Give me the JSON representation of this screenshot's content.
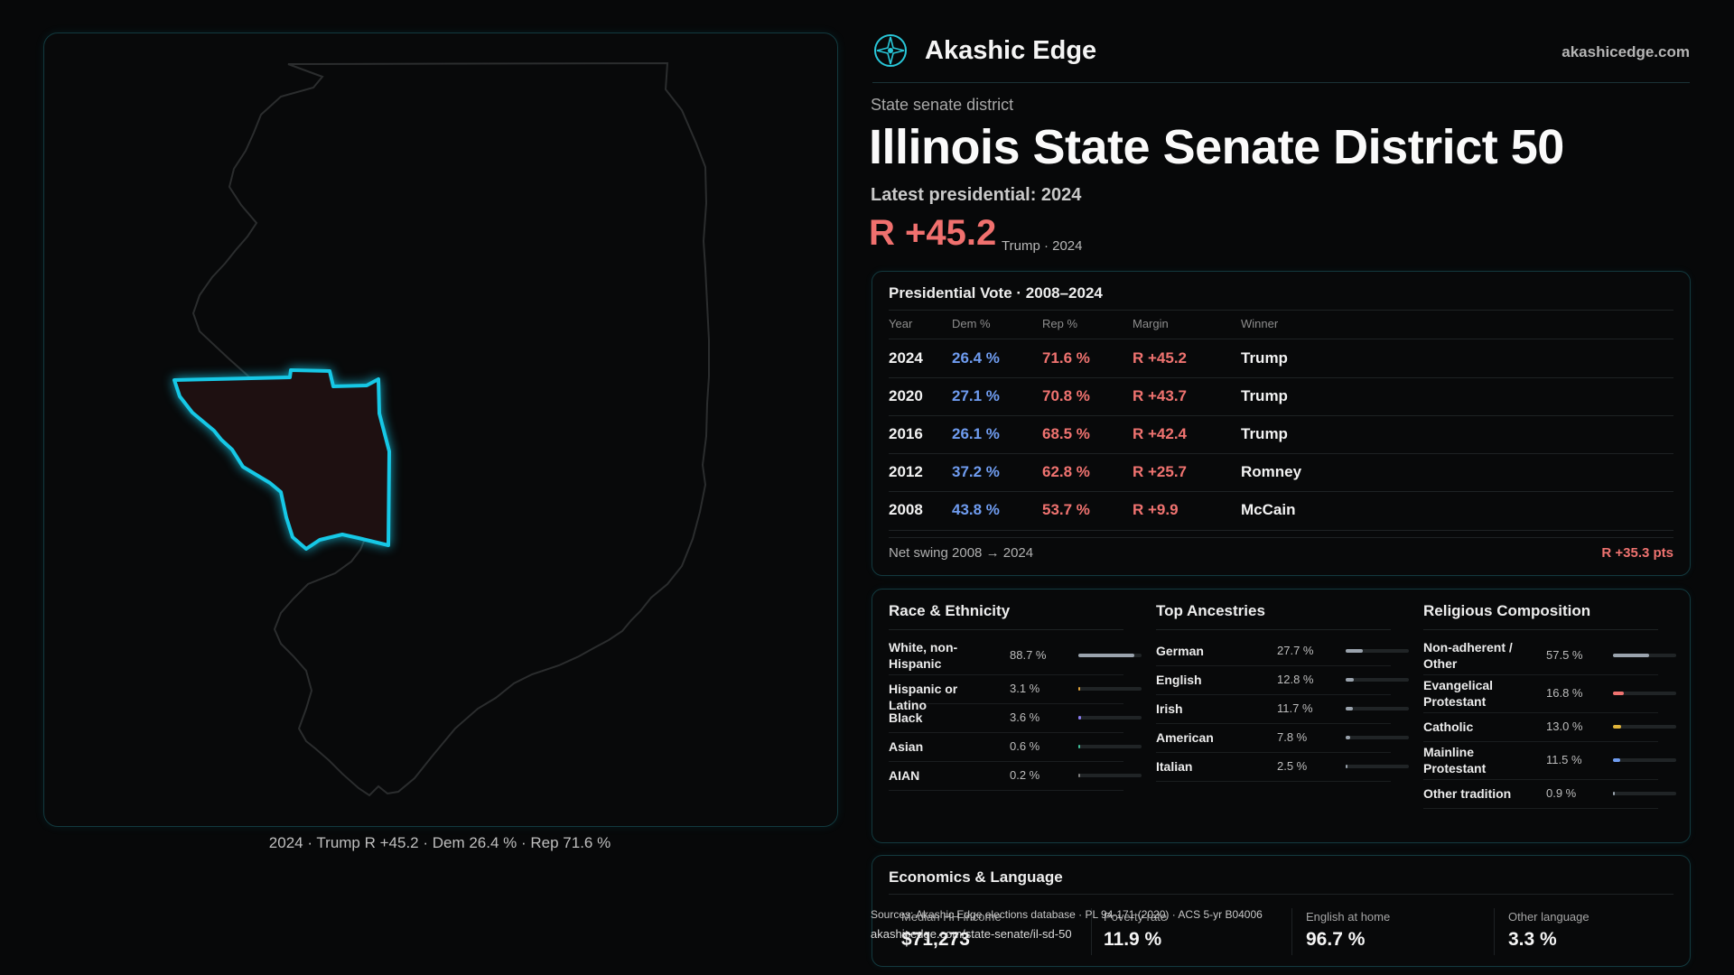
{
  "map": {
    "caption": "2024 · Trump R +45.2 · Dem 26.4 % · Rep 71.6 %"
  },
  "brand": {
    "name": "Akashic Edge",
    "url": "akashicedge.com",
    "logo_icon": "compass-rose-icon"
  },
  "header": {
    "subtitle": "State senate district",
    "title": "Illinois State Senate District 50",
    "latest_label": "Latest presidential: 2024",
    "margin": "R +45.2",
    "margin_note": "Trump · 2024"
  },
  "presidential": {
    "title": "Presidential Vote · 2008–2024",
    "columns": [
      "Year",
      "Dem %",
      "Rep %",
      "Margin",
      "Winner"
    ],
    "rows": [
      {
        "year": "2024",
        "dem": "26.4 %",
        "rep": "71.6 %",
        "margin": "R +45.2",
        "winner": "Trump"
      },
      {
        "year": "2020",
        "dem": "27.1 %",
        "rep": "70.8 %",
        "margin": "R +43.7",
        "winner": "Trump"
      },
      {
        "year": "2016",
        "dem": "26.1 %",
        "rep": "68.5 %",
        "margin": "R +42.4",
        "winner": "Trump"
      },
      {
        "year": "2012",
        "dem": "37.2 %",
        "rep": "62.8 %",
        "margin": "R +25.7",
        "winner": "Romney"
      },
      {
        "year": "2008",
        "dem": "43.8 %",
        "rep": "53.7 %",
        "margin": "R +9.9",
        "winner": "McCain"
      }
    ],
    "swing_label": "Net swing 2008 → 2024",
    "swing_value": "R +35.3 pts"
  },
  "demographics": [
    {
      "title": "Race & Ethnicity",
      "items": [
        {
          "label": "White, non-Hispanic",
          "value": "88.7 %",
          "share": 0.887,
          "color": "#9aa3ad"
        },
        {
          "label": "Hispanic or Latino",
          "value": "3.1 %",
          "share": 0.031,
          "color": "#e0a23a"
        },
        {
          "label": "Black",
          "value": "3.6 %",
          "share": 0.036,
          "color": "#8a7cf0"
        },
        {
          "label": "Asian",
          "value": "0.6 %",
          "share": 0.006,
          "color": "#3fbf9a"
        },
        {
          "label": "AIAN",
          "value": "0.2 %",
          "share": 0.002,
          "color": "#7f7f7f"
        }
      ]
    },
    {
      "title": "Top Ancestries",
      "items": [
        {
          "label": "German",
          "value": "27.7 %",
          "share": 0.277,
          "color": "#9aa3ad"
        },
        {
          "label": "English",
          "value": "12.8 %",
          "share": 0.128,
          "color": "#9aa3ad"
        },
        {
          "label": "Irish",
          "value": "11.7 %",
          "share": 0.117,
          "color": "#9aa3ad"
        },
        {
          "label": "American",
          "value": "7.8 %",
          "share": 0.078,
          "color": "#9aa3ad"
        },
        {
          "label": "Italian",
          "value": "2.5 %",
          "share": 0.025,
          "color": "#9aa3ad"
        }
      ]
    },
    {
      "title": "Religious Composition",
      "items": [
        {
          "label": "Non-adherent / Other",
          "value": "57.5 %",
          "share": 0.575,
          "color": "#9aa3ad"
        },
        {
          "label": "Evangelical Protestant",
          "value": "16.8 %",
          "share": 0.168,
          "color": "#f07370"
        },
        {
          "label": "Catholic",
          "value": "13.0 %",
          "share": 0.13,
          "color": "#e0b43a"
        },
        {
          "label": "Mainline Protestant",
          "value": "11.5 %",
          "share": 0.115,
          "color": "#6f9cf0"
        },
        {
          "label": "Other tradition",
          "value": "0.9 %",
          "share": 0.009,
          "color": "#9aa3ad"
        }
      ]
    }
  ],
  "economics": {
    "title": "Economics & Language",
    "cells": [
      {
        "label": "Median HH income",
        "value": "$71,273"
      },
      {
        "label": "Poverty rate",
        "value": "11.9 %"
      },
      {
        "label": "English at home",
        "value": "96.7 %"
      },
      {
        "label": "Other language",
        "value": "3.3 %"
      }
    ]
  },
  "footer": {
    "source": "Sources: Akashic Edge elections database · PL 94-171 (2020) · ACS 5-yr B04006",
    "url": "akashicedge.com/state-senate/il-sd-50"
  }
}
